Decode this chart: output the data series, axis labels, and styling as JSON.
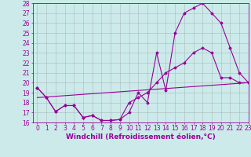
{
  "background_color": "#cceaea",
  "line_color": "#990099",
  "grid_color": "#aabbbb",
  "xlabel": "Windchill (Refroidissement éolien,°C)",
  "xlabel_fontsize": 6.5,
  "tick_fontsize": 5.5,
  "ylim": [
    16,
    28
  ],
  "xlim": [
    -0.5,
    23
  ],
  "yticks": [
    16,
    17,
    18,
    19,
    20,
    21,
    22,
    23,
    24,
    25,
    26,
    27,
    28
  ],
  "xticks": [
    0,
    1,
    2,
    3,
    4,
    5,
    6,
    7,
    8,
    9,
    10,
    11,
    12,
    13,
    14,
    15,
    16,
    17,
    18,
    19,
    20,
    21,
    22,
    23
  ],
  "series1_x": [
    0,
    1,
    2,
    3,
    4,
    5,
    6,
    7,
    8,
    9,
    10,
    11,
    12,
    13,
    14,
    15,
    16,
    17,
    18,
    19,
    20,
    21,
    22,
    23
  ],
  "series1_y": [
    19.5,
    18.5,
    17.1,
    17.7,
    17.7,
    16.5,
    16.7,
    16.2,
    16.2,
    16.3,
    17.0,
    19.0,
    18.0,
    23.0,
    19.2,
    25.0,
    27.0,
    27.5,
    28.0,
    27.0,
    26.0,
    23.5,
    21.0,
    20.0
  ],
  "series2_x": [
    0,
    1,
    2,
    3,
    4,
    5,
    6,
    7,
    8,
    9,
    10,
    11,
    12,
    13,
    14,
    15,
    16,
    17,
    18,
    19,
    20,
    21,
    22,
    23
  ],
  "series2_y": [
    19.5,
    18.5,
    17.1,
    17.7,
    17.7,
    16.5,
    16.7,
    16.2,
    16.2,
    16.3,
    18.0,
    18.5,
    19.0,
    20.0,
    21.0,
    21.5,
    22.0,
    23.0,
    23.5,
    23.0,
    20.5,
    20.5,
    20.0,
    20.0
  ],
  "series3_x": [
    0,
    23
  ],
  "series3_y": [
    18.5,
    20.0
  ]
}
